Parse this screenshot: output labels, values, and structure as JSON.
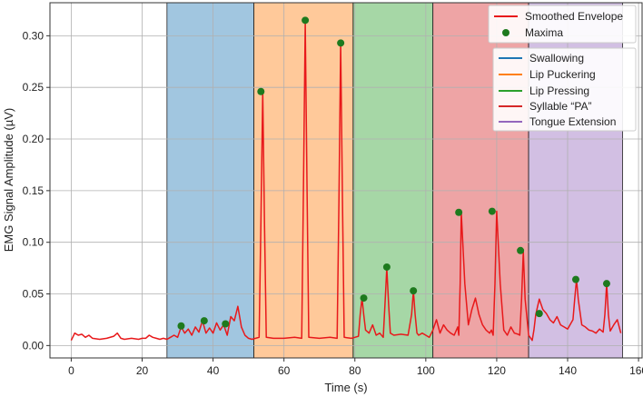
{
  "chart_data": {
    "type": "line",
    "title": "",
    "xlabel": "Time (s)",
    "ylabel": "EMG Signal Amplitude (µV)",
    "xlim": [
      -6,
      161
    ],
    "ylim": [
      -0.012,
      0.332
    ],
    "xticks": [
      0,
      20,
      40,
      60,
      80,
      100,
      120,
      140,
      160
    ],
    "yticks": [
      0.0,
      0.05,
      0.1,
      0.15,
      0.2,
      0.25,
      0.3
    ],
    "ytick_labels": [
      "0.00",
      "0.05",
      "0.10",
      "0.15",
      "0.20",
      "0.25",
      "0.30"
    ],
    "grid": true,
    "colors": {
      "envelope": "#e8191b",
      "maxima": "#1e7a1e",
      "Swallowing": "#1f77b4",
      "Lip Puckering": "#ff7f0e",
      "Lip Pressing": "#2ca02c",
      "Syllable": "#d62728",
      "Tongue Extension": "#9467bd"
    },
    "regions": [
      {
        "name": "Swallowing",
        "x0": 27,
        "x1": 51.5,
        "color_key": "Swallowing"
      },
      {
        "name": "Lip Puckering",
        "x0": 51.5,
        "x1": 79.5,
        "color_key": "Lip Puckering"
      },
      {
        "name": "Lip Pressing",
        "x0": 79.5,
        "x1": 102,
        "color_key": "Lip Pressing"
      },
      {
        "name": "Syllable “PA”",
        "x0": 102,
        "x1": 129,
        "color_key": "Syllable"
      },
      {
        "name": "Tongue Extension",
        "x0": 129,
        "x1": 155.5,
        "color_key": "Tongue Extension"
      }
    ],
    "series": [
      {
        "name": "Smoothed Envelope",
        "x": [
          0,
          1,
          2,
          3,
          4,
          5,
          6,
          8,
          10,
          12,
          13,
          14,
          15,
          17,
          19,
          20,
          21,
          22,
          23,
          24,
          25,
          26,
          27,
          28,
          29,
          30,
          31,
          32,
          33,
          34,
          35,
          36,
          37,
          38,
          39,
          40,
          41,
          42,
          43,
          44,
          45,
          46,
          47,
          48,
          49,
          50,
          51,
          52,
          53,
          53.5,
          54,
          54.5,
          55,
          57,
          60,
          63,
          65,
          65.5,
          66,
          66.5,
          67,
          70,
          73,
          75,
          75.5,
          76,
          76.5,
          77,
          79,
          80,
          81,
          81.5,
          82,
          82.5,
          83,
          84,
          85,
          86,
          87,
          88,
          88.5,
          89,
          89.5,
          90,
          91,
          93,
          95,
          96,
          96.5,
          97,
          97.5,
          98,
          99,
          100,
          101,
          102,
          103,
          104,
          105,
          106,
          107,
          108,
          109,
          109.3,
          109.7,
          110,
          111,
          112,
          113,
          114,
          115,
          116,
          117,
          118,
          118.5,
          119,
          119.5,
          120,
          121,
          122,
          123,
          124,
          125,
          126,
          126.5,
          127,
          127.5,
          128,
          129,
          130,
          130.5,
          131,
          132,
          133,
          134,
          135,
          136,
          137,
          138,
          139,
          140,
          141,
          141.5,
          142,
          142.5,
          143,
          144,
          145,
          146,
          147,
          148,
          149,
          150,
          150.5,
          151,
          151.5,
          152,
          153,
          154,
          155
        ],
        "y": [
          0.005,
          0.012,
          0.01,
          0.011,
          0.008,
          0.01,
          0.007,
          0.006,
          0.007,
          0.009,
          0.012,
          0.007,
          0.006,
          0.007,
          0.006,
          0.007,
          0.007,
          0.01,
          0.008,
          0.007,
          0.006,
          0.007,
          0.006,
          0.008,
          0.01,
          0.008,
          0.018,
          0.012,
          0.016,
          0.01,
          0.018,
          0.013,
          0.024,
          0.012,
          0.017,
          0.012,
          0.022,
          0.015,
          0.02,
          0.01,
          0.028,
          0.024,
          0.038,
          0.018,
          0.01,
          0.007,
          0.006,
          0.007,
          0.008,
          0.12,
          0.246,
          0.12,
          0.008,
          0.007,
          0.007,
          0.008,
          0.007,
          0.15,
          0.314,
          0.15,
          0.008,
          0.007,
          0.008,
          0.007,
          0.14,
          0.293,
          0.14,
          0.008,
          0.007,
          0.008,
          0.009,
          0.03,
          0.046,
          0.03,
          0.015,
          0.012,
          0.02,
          0.01,
          0.012,
          0.008,
          0.04,
          0.075,
          0.04,
          0.012,
          0.01,
          0.011,
          0.01,
          0.03,
          0.053,
          0.03,
          0.012,
          0.01,
          0.012,
          0.01,
          0.008,
          0.015,
          0.025,
          0.012,
          0.02,
          0.015,
          0.012,
          0.01,
          0.018,
          0.01,
          0.06,
          0.129,
          0.06,
          0.02,
          0.035,
          0.046,
          0.03,
          0.02,
          0.015,
          0.012,
          0.015,
          0.01,
          0.06,
          0.13,
          0.06,
          0.015,
          0.01,
          0.018,
          0.012,
          0.011,
          0.01,
          0.045,
          0.091,
          0.045,
          0.01,
          0.005,
          0.015,
          0.03,
          0.045,
          0.035,
          0.031,
          0.025,
          0.022,
          0.028,
          0.02,
          0.018,
          0.016,
          0.022,
          0.025,
          0.045,
          0.064,
          0.045,
          0.02,
          0.018,
          0.015,
          0.014,
          0.012,
          0.016,
          0.013,
          0.03,
          0.06,
          0.03,
          0.014,
          0.02,
          0.025,
          0.012
        ]
      },
      {
        "name": "Maxima",
        "x": [
          31,
          37.5,
          43.5,
          53.5,
          66,
          76,
          82.5,
          89,
          96.5,
          109.3,
          118.7,
          126.7,
          132,
          142.3,
          151
        ],
        "y": [
          0.019,
          0.024,
          0.021,
          0.246,
          0.315,
          0.293,
          0.046,
          0.076,
          0.053,
          0.129,
          0.13,
          0.092,
          0.031,
          0.064,
          0.06
        ]
      }
    ],
    "legend1": {
      "placement": "top-right",
      "entries": [
        "Smoothed Envelope",
        "Maxima"
      ]
    },
    "legend2": {
      "placement": "upper-right",
      "entries": [
        "Swallowing",
        "Lip Puckering",
        "Lip Pressing",
        "Syllable “PA”",
        "Tongue Extension"
      ]
    }
  }
}
